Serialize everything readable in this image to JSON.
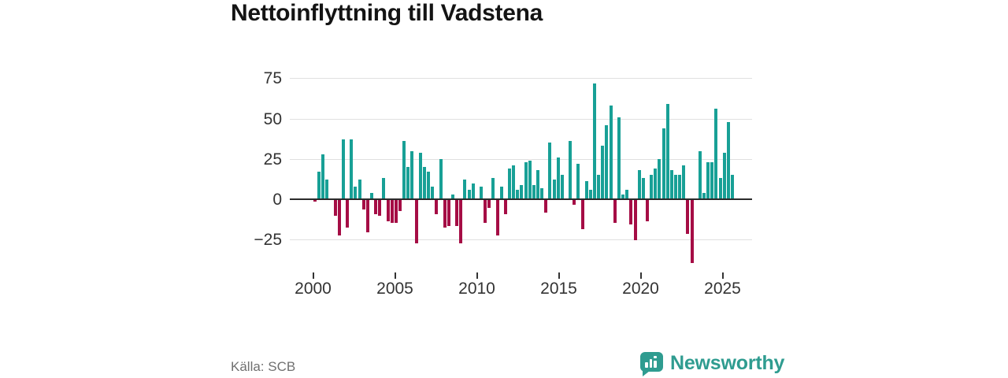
{
  "title": "Nettoinflyttning till Vadstena",
  "source": "Källa: SCB",
  "branding": {
    "name": "Newsworthy",
    "icon": "newsworthy-speech-bubble-chart-icon",
    "color": "#2f9c90"
  },
  "chart_data": {
    "type": "bar",
    "title": "Nettoinflyttning till Vadstena",
    "xlabel": "",
    "ylabel": "",
    "grid": true,
    "legend": "none",
    "y_ticks": [
      75,
      50,
      25,
      0,
      -25
    ],
    "y_tick_labels": [
      "75",
      "50",
      "25",
      "0",
      "−25"
    ],
    "ylim": [
      -45,
      82
    ],
    "x_tick_labels": [
      "2000",
      "2005",
      "2010",
      "2015",
      "2020",
      "2025"
    ],
    "colors": {
      "positive": "#18a096",
      "negative": "#a50d45"
    },
    "frequency": "quarterly",
    "series": [
      {
        "year": "2000",
        "values": [
          -1,
          17,
          28,
          12
        ]
      },
      {
        "year": "2001",
        "values": [
          0,
          -10,
          -22,
          37
        ]
      },
      {
        "year": "2002",
        "values": [
          -17,
          37,
          8,
          12
        ]
      },
      {
        "year": "2003",
        "values": [
          -6,
          -20,
          4,
          -9
        ]
      },
      {
        "year": "2004",
        "values": [
          -10,
          13,
          -13,
          -14
        ]
      },
      {
        "year": "2005",
        "values": [
          -14,
          -7,
          36,
          20
        ]
      },
      {
        "year": "2006",
        "values": [
          30,
          -27,
          29,
          20
        ]
      },
      {
        "year": "2007",
        "values": [
          17,
          8,
          -9,
          25
        ]
      },
      {
        "year": "2008",
        "values": [
          -17,
          -16,
          3,
          -16
        ]
      },
      {
        "year": "2009",
        "values": [
          -27,
          12,
          6,
          10
        ]
      },
      {
        "year": "2010",
        "values": [
          0,
          8,
          -14,
          -5
        ]
      },
      {
        "year": "2011",
        "values": [
          13,
          -22,
          8,
          -9
        ]
      },
      {
        "year": "2012",
        "values": [
          19,
          21,
          6,
          9
        ]
      },
      {
        "year": "2013",
        "values": [
          23,
          24,
          9,
          18
        ]
      },
      {
        "year": "2014",
        "values": [
          7,
          -8,
          35,
          12
        ]
      },
      {
        "year": "2015",
        "values": [
          26,
          15,
          0,
          36
        ]
      },
      {
        "year": "2016",
        "values": [
          -3,
          22,
          -18,
          11
        ]
      },
      {
        "year": "2017",
        "values": [
          6,
          72,
          15,
          33
        ]
      },
      {
        "year": "2018",
        "values": [
          46,
          58,
          -14,
          51
        ]
      },
      {
        "year": "2019",
        "values": [
          3,
          6,
          -15,
          -25
        ]
      },
      {
        "year": "2020",
        "values": [
          18,
          13,
          -13,
          15
        ]
      },
      {
        "year": "2021",
        "values": [
          19,
          25,
          44,
          59
        ]
      },
      {
        "year": "2022",
        "values": [
          18,
          15,
          15,
          21
        ]
      },
      {
        "year": "2023",
        "values": [
          -21,
          -39,
          0,
          30
        ]
      },
      {
        "year": "2024",
        "values": [
          4,
          23,
          23,
          56
        ]
      },
      {
        "year": "2025",
        "values": [
          13,
          29,
          48,
          15
        ]
      }
    ]
  }
}
